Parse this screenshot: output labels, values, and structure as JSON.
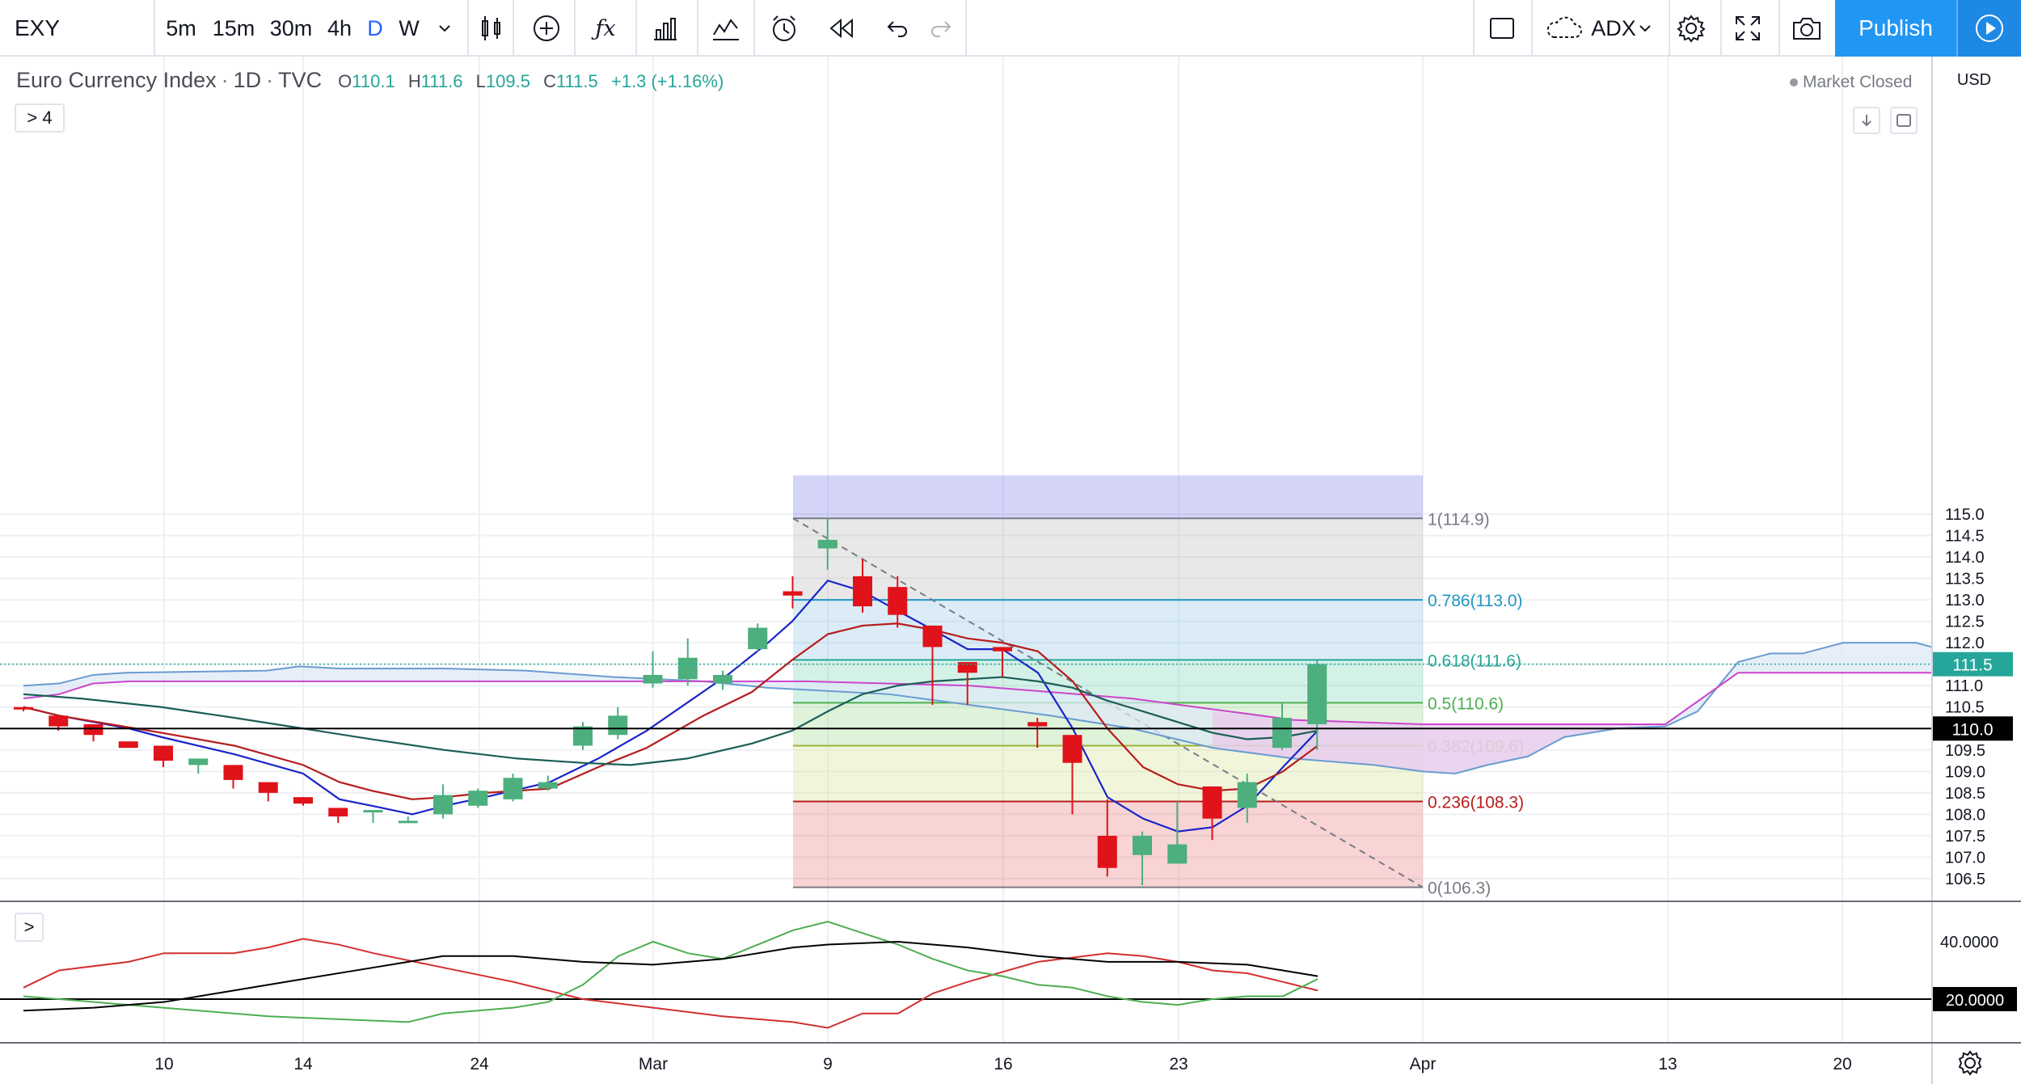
{
  "toolbar": {
    "symbol": "EXY",
    "intervals": [
      "5m",
      "15m",
      "30m",
      "4h",
      "D",
      "W"
    ],
    "active_interval": "D",
    "indicator_name": "ADX",
    "publish_label": "Publish"
  },
  "legend": {
    "title": "Euro Currency Index",
    "sep1": "·",
    "interval": "1D",
    "sep2": "·",
    "source": "TVC",
    "o_label": "O",
    "o_value": "110.1",
    "h_label": "H",
    "h_value": "111.6",
    "l_label": "L",
    "l_value": "109.5",
    "c_label": "C",
    "c_value": "111.5",
    "change": "+1.3 (+1.16%)",
    "indicators_toggle": "> 4",
    "market_status": "Market Closed",
    "currency": "USD",
    "pane_toggle": ">"
  },
  "colors": {
    "up": "#4caf7d",
    "down": "#e0121a",
    "fast_ma": "#1a24c8",
    "slow_ma": "#b71c1c",
    "long_ma": "#1b5e55",
    "magenta_line": "#cc44cc",
    "cloud_fill": "#dde9f5",
    "adx_pos": "#4caf50",
    "adx_neg": "#d32f2f",
    "adx_main": "#000000",
    "price_label_green": "#26a69a"
  },
  "chart_data": {
    "type": "candlestick",
    "ylim": [
      106.2,
      115.3
    ],
    "y_ticks": [
      "115.0",
      "114.5",
      "114.0",
      "113.5",
      "113.0",
      "112.5",
      "112.0",
      "111.5",
      "111.0",
      "110.5",
      "110.0",
      "109.5",
      "109.0",
      "108.5",
      "108.0",
      "107.5",
      "107.0",
      "106.5"
    ],
    "x_ticks": [
      "10",
      "14",
      "24",
      "Mar",
      "9",
      "16",
      "23",
      "Apr",
      "13",
      "20"
    ],
    "candles": [
      {
        "o": 110.5,
        "h": 110.5,
        "l": 110.4,
        "c": 110.45
      },
      {
        "o": 110.3,
        "h": 110.3,
        "l": 109.95,
        "c": 110.05
      },
      {
        "o": 110.1,
        "h": 110.1,
        "l": 109.7,
        "c": 109.85
      },
      {
        "o": 109.7,
        "h": 109.7,
        "l": 109.55,
        "c": 109.55
      },
      {
        "o": 109.6,
        "h": 109.6,
        "l": 109.1,
        "c": 109.25
      },
      {
        "o": 109.15,
        "h": 109.3,
        "l": 108.95,
        "c": 109.3
      },
      {
        "o": 109.15,
        "h": 109.15,
        "l": 108.6,
        "c": 108.8
      },
      {
        "o": 108.75,
        "h": 108.75,
        "l": 108.3,
        "c": 108.5
      },
      {
        "o": 108.4,
        "h": 108.4,
        "l": 108.2,
        "c": 108.25
      },
      {
        "o": 108.15,
        "h": 108.15,
        "l": 107.8,
        "c": 107.95
      },
      {
        "o": 108.05,
        "h": 108.1,
        "l": 107.8,
        "c": 108.1
      },
      {
        "o": 107.85,
        "h": 107.95,
        "l": 107.8,
        "c": 107.85
      },
      {
        "o": 108.0,
        "h": 108.7,
        "l": 107.9,
        "c": 108.45
      },
      {
        "o": 108.2,
        "h": 108.6,
        "l": 108.15,
        "c": 108.55
      },
      {
        "o": 108.35,
        "h": 108.95,
        "l": 108.3,
        "c": 108.85
      },
      {
        "o": 108.6,
        "h": 108.9,
        "l": 108.55,
        "c": 108.75
      },
      {
        "o": 109.6,
        "h": 110.15,
        "l": 109.5,
        "c": 110.05
      },
      {
        "o": 109.85,
        "h": 110.5,
        "l": 109.75,
        "c": 110.3
      },
      {
        "o": 111.05,
        "h": 111.8,
        "l": 110.95,
        "c": 111.25
      },
      {
        "o": 111.15,
        "h": 112.1,
        "l": 111.0,
        "c": 111.65
      },
      {
        "o": 111.05,
        "h": 111.35,
        "l": 110.9,
        "c": 111.25
      },
      {
        "o": 111.85,
        "h": 112.45,
        "l": 111.8,
        "c": 112.35
      },
      {
        "o": 113.2,
        "h": 113.55,
        "l": 112.8,
        "c": 113.1
      },
      {
        "o": 114.2,
        "h": 114.9,
        "l": 113.7,
        "c": 114.4
      },
      {
        "o": 113.55,
        "h": 113.95,
        "l": 112.7,
        "c": 112.85
      },
      {
        "o": 113.3,
        "h": 113.55,
        "l": 112.35,
        "c": 112.65
      },
      {
        "o": 112.4,
        "h": 112.4,
        "l": 110.55,
        "c": 111.9
      },
      {
        "o": 111.55,
        "h": 111.55,
        "l": 110.55,
        "c": 111.3
      },
      {
        "o": 111.9,
        "h": 111.9,
        "l": 111.2,
        "c": 111.8
      },
      {
        "o": 110.15,
        "h": 110.25,
        "l": 109.55,
        "c": 110.05
      },
      {
        "o": 109.85,
        "h": 109.85,
        "l": 108.0,
        "c": 109.2
      },
      {
        "o": 107.5,
        "h": 108.35,
        "l": 106.55,
        "c": 106.75
      },
      {
        "o": 107.05,
        "h": 107.6,
        "l": 106.35,
        "c": 107.5
      },
      {
        "o": 106.85,
        "h": 108.3,
        "l": 106.85,
        "c": 107.3
      },
      {
        "o": 108.65,
        "h": 108.65,
        "l": 107.4,
        "c": 107.9
      },
      {
        "o": 108.15,
        "h": 108.95,
        "l": 107.8,
        "c": 108.75
      },
      {
        "o": 109.55,
        "h": 110.6,
        "l": 109.5,
        "c": 110.25
      },
      {
        "o": 110.1,
        "h": 111.6,
        "l": 109.5,
        "c": 111.5
      }
    ],
    "fibonacci": {
      "levels": [
        {
          "label": "1(114.9)",
          "value": 114.9,
          "color": "#787b86"
        },
        {
          "label": "0.786(113.0)",
          "value": 113.0,
          "color": "#2196c3"
        },
        {
          "label": "0.618(111.6)",
          "value": 111.6,
          "color": "#26a69a"
        },
        {
          "label": "0.5(110.6)",
          "value": 110.6,
          "color": "#4caf50"
        },
        {
          "label": "0.382(109.6)",
          "value": 109.6,
          "color": "#9cb23a"
        },
        {
          "label": "0.236(108.3)",
          "value": 108.3,
          "color": "#b71c1c"
        },
        {
          "label": "0(106.3)",
          "value": 106.3,
          "color": "#787b86"
        }
      ]
    },
    "horizontal_line": {
      "value": 110.0,
      "label": "110.0"
    },
    "last_price": {
      "value": 111.5,
      "label": "111.5"
    },
    "adx": {
      "y_ticks": [
        "40.0000",
        "20.0000"
      ],
      "ylim": [
        5,
        55
      ],
      "level_label": "20.0000",
      "level": 20.0
    }
  }
}
